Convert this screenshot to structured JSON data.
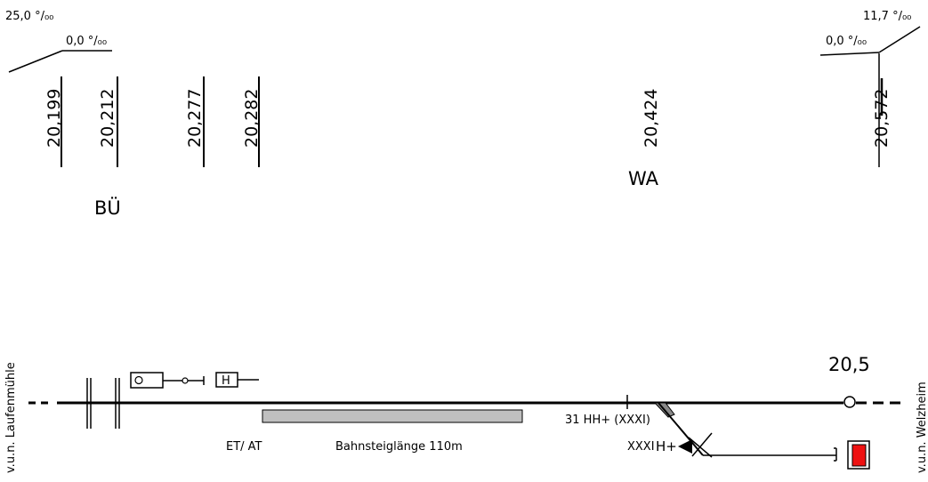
{
  "gradients": {
    "left_outer": "25,0 °/₀₀",
    "left_inner": "0,0 °/₀₀",
    "right_outer": "11,7 °/₀₀",
    "right_inner": "0,0 °/₀₀"
  },
  "kilometer_marks": [
    "20,199",
    "20,212",
    "20,277",
    "20,282",
    "20,424",
    "20,572"
  ],
  "labels": {
    "bu": "BÜ",
    "wa": "WA",
    "km_post": "20,5",
    "platform_label": "ET/ AT",
    "platform_length": "Bahnsteiglänge 110m",
    "switch_31": "31 HH+ (XXXI)",
    "switch_xxxi": "XXXI",
    "h_plus": "H+",
    "left_direction": "v.u.n. Laufenmühle",
    "right_direction": "v.u.n. Welzheim",
    "signal_h": "H"
  },
  "colors": {
    "platform_fill": "#bfbfbf",
    "stop_block": "#ee1111",
    "track": "#000000"
  }
}
